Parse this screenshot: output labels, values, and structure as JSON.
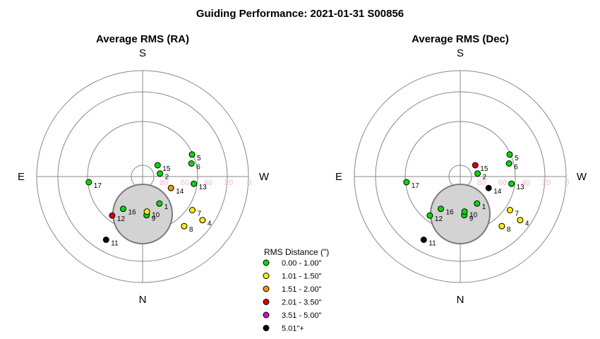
{
  "title": "Guiding Performance: 2021-01-31 S00856",
  "compass": {
    "top": "S",
    "bottom": "N",
    "left": "E",
    "right": "W"
  },
  "tick_labels": [
    "80",
    "60",
    "40",
    "20",
    "0"
  ],
  "colors": {
    "ring": "#888888",
    "moon_fill": "#d3d3d3",
    "moon_stroke": "#7a7a7a",
    "tick_label": "#f4b8c4"
  },
  "legend": {
    "title": "RMS Distance (\")",
    "items": [
      {
        "label": "0.00 - 1.00\"",
        "color": "#00dd00"
      },
      {
        "label": "1.01 - 1.50\"",
        "color": "#ffee00"
      },
      {
        "label": "1.51 - 2.00\"",
        "color": "#ee9900"
      },
      {
        "label": "2.01 - 3.50\"",
        "color": "#dd0000"
      },
      {
        "label": "3.51 - 5.00\"",
        "color": "#dd00dd"
      },
      {
        "label": "5.01\"+",
        "color": "#000000"
      }
    ]
  },
  "chart_data": [
    {
      "type": "scatter",
      "title": "Average RMS (RA)",
      "coordinate": "polar",
      "radial_axis": "altitude",
      "radial_range": [
        90,
        0
      ],
      "points": [
        {
          "id": "1",
          "az": 212,
          "alt": 63,
          "category": 0
        },
        {
          "id": "2",
          "az": 280,
          "alt": 75,
          "category": 0
        },
        {
          "id": "4",
          "az": 234,
          "alt": 27,
          "category": 1
        },
        {
          "id": "5",
          "az": 294,
          "alt": 44,
          "category": 0
        },
        {
          "id": "6",
          "az": 285,
          "alt": 47,
          "category": 0
        },
        {
          "id": "7",
          "az": 236,
          "alt": 39,
          "category": 1
        },
        {
          "id": "8",
          "az": 220,
          "alt": 35,
          "category": 1
        },
        {
          "id": "9",
          "az": 186,
          "alt": 57,
          "category": 0
        },
        {
          "id": "10",
          "az": 187,
          "alt": 60,
          "category": 1
        },
        {
          "id": "11",
          "az": 150,
          "alt": 28,
          "category": 5
        },
        {
          "id": "12",
          "az": 142,
          "alt": 48,
          "category": 3
        },
        {
          "id": "13",
          "az": 262,
          "alt": 46,
          "category": 0
        },
        {
          "id": "14",
          "az": 248,
          "alt": 64,
          "category": 2
        },
        {
          "id": "15",
          "az": 307,
          "alt": 74,
          "category": 0
        },
        {
          "id": "16",
          "az": 149,
          "alt": 58,
          "category": 0
        },
        {
          "id": "17",
          "az": 96,
          "alt": 44,
          "category": 0
        }
      ]
    },
    {
      "type": "scatter",
      "title": "Average RMS (Dec)",
      "coordinate": "polar",
      "radial_axis": "altitude",
      "radial_range": [
        90,
        0
      ],
      "points": [
        {
          "id": "1",
          "az": 212,
          "alt": 63,
          "category": 0
        },
        {
          "id": "2",
          "az": 280,
          "alt": 75,
          "category": 0
        },
        {
          "id": "4",
          "az": 234,
          "alt": 27,
          "category": 1
        },
        {
          "id": "5",
          "az": 294,
          "alt": 44,
          "category": 0
        },
        {
          "id": "6",
          "az": 285,
          "alt": 47,
          "category": 0
        },
        {
          "id": "7",
          "az": 236,
          "alt": 39,
          "category": 1
        },
        {
          "id": "8",
          "az": 220,
          "alt": 35,
          "category": 1
        },
        {
          "id": "9",
          "az": 186,
          "alt": 57,
          "category": 0
        },
        {
          "id": "10",
          "az": 187,
          "alt": 60,
          "category": 0
        },
        {
          "id": "11",
          "az": 150,
          "alt": 28,
          "category": 5
        },
        {
          "id": "12",
          "az": 142,
          "alt": 48,
          "category": 0
        },
        {
          "id": "13",
          "az": 262,
          "alt": 46,
          "category": 0
        },
        {
          "id": "14",
          "az": 248,
          "alt": 64,
          "category": 5
        },
        {
          "id": "15",
          "az": 307,
          "alt": 74,
          "category": 3
        },
        {
          "id": "16",
          "az": 149,
          "alt": 58,
          "category": 0
        },
        {
          "id": "17",
          "az": 96,
          "alt": 44,
          "category": 0
        }
      ]
    }
  ]
}
